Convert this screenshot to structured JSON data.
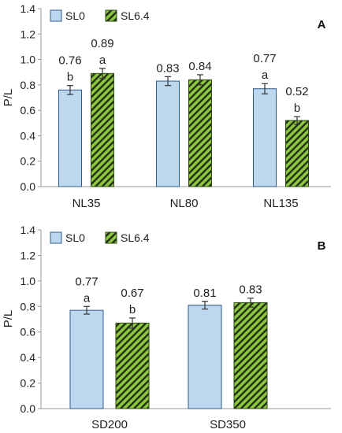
{
  "chart_data": [
    {
      "type": "bar",
      "panel": "A",
      "ylabel": "P/L",
      "ylim": [
        0,
        1.4
      ],
      "yticks": [
        "0.0",
        "0.2",
        "0.4",
        "0.6",
        "0.8",
        "1.0",
        "1.2",
        "1.4"
      ],
      "categories": [
        "NL35",
        "NL80",
        "NL135"
      ],
      "legend_position": "top-left",
      "series": [
        {
          "name": "SL0",
          "values": [
            0.76,
            0.83,
            0.77
          ],
          "errors": [
            0.035,
            0.035,
            0.04
          ],
          "labels": [
            "0.76",
            "0.83",
            "0.77"
          ],
          "letters": [
            "b",
            "",
            "a"
          ]
        },
        {
          "name": "SL6.4",
          "values": [
            0.89,
            0.84,
            0.52
          ],
          "errors": [
            0.04,
            0.04,
            0.03
          ],
          "labels": [
            "0.89",
            "0.84",
            "0.52"
          ],
          "letters": [
            "a",
            "",
            "b"
          ]
        }
      ]
    },
    {
      "type": "bar",
      "panel": "B",
      "ylabel": "P/L",
      "ylim": [
        0,
        1.4
      ],
      "yticks": [
        "0.0",
        "0.2",
        "0.4",
        "0.6",
        "0.8",
        "1.0",
        "1.2",
        "1.4"
      ],
      "categories": [
        "SD200",
        "SD350"
      ],
      "legend_position": "top-left",
      "series": [
        {
          "name": "SL0",
          "values": [
            0.77,
            0.81
          ],
          "errors": [
            0.03,
            0.03
          ],
          "labels": [
            "0.77",
            "0.81"
          ],
          "letters": [
            "a",
            ""
          ]
        },
        {
          "name": "SL6.4",
          "values": [
            0.67,
            0.83
          ],
          "errors": [
            0.04,
            0.035
          ],
          "labels": [
            "0.67",
            "0.83"
          ],
          "letters": [
            "b",
            ""
          ]
        }
      ]
    }
  ],
  "colors": {
    "sl0_fill": "#bdd7ee",
    "sl0_stroke": "#2e5c8a",
    "sl64_fill": "#8dc63f",
    "sl64_stripe": "#1f2f10",
    "sl64_stroke": "#2d4a12",
    "axis": "#999999",
    "error": "#333333"
  }
}
